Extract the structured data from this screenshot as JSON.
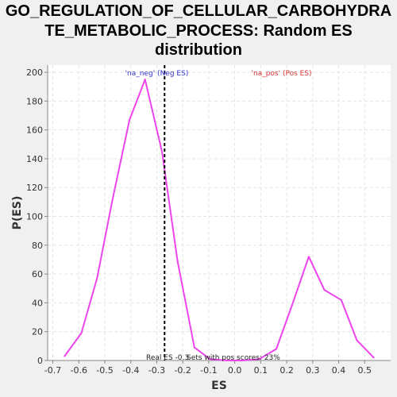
{
  "title_lines": [
    "GO_REGULATION_OF_CELLULAR_CARBOHYDRA",
    "TE_METABOLIC_PROCESS: Random ES",
    "distribution"
  ],
  "chart_data": {
    "type": "line",
    "title": "GO_REGULATION_OF_CELLULAR_CARBOHYDRATE_METABOLIC_PROCESS: Random ES distribution",
    "xlabel": "ES",
    "ylabel": "P(ES)",
    "xlim": [
      -0.72,
      0.6
    ],
    "ylim": [
      0,
      205
    ],
    "xticks": [
      -0.7,
      -0.6,
      -0.5,
      -0.4,
      -0.3,
      -0.2,
      -0.1,
      0.0,
      0.1,
      0.2,
      0.3,
      0.4,
      0.5
    ],
    "xtick_labels": [
      "-0.7",
      "-0.6",
      "-0.5",
      "-0.4",
      "-0.3",
      "-0.2",
      "-0.1",
      "0.0",
      "0.1",
      "0.2",
      "0.3",
      "0.4",
      "0.5"
    ],
    "yticks": [
      0,
      20,
      40,
      60,
      80,
      100,
      120,
      140,
      160,
      180,
      200
    ],
    "ytick_labels": [
      "0",
      "20",
      "40",
      "60",
      "80",
      "100",
      "120",
      "140",
      "160",
      "180",
      "200"
    ],
    "grid": true,
    "series": [
      {
        "color": "#ee44ee",
        "points": [
          [
            -0.655,
            3
          ],
          [
            -0.59,
            19
          ],
          [
            -0.53,
            57
          ],
          [
            -0.47,
            112
          ],
          [
            -0.405,
            167
          ],
          [
            -0.345,
            195
          ],
          [
            -0.28,
            145
          ],
          [
            -0.22,
            69
          ],
          [
            -0.155,
            9
          ],
          [
            -0.095,
            1
          ],
          [
            -0.03,
            0
          ],
          [
            0.03,
            0
          ],
          [
            0.095,
            1
          ],
          [
            0.16,
            8
          ],
          [
            0.22,
            38
          ],
          [
            0.285,
            72
          ],
          [
            0.345,
            49
          ],
          [
            0.41,
            42
          ],
          [
            0.47,
            14
          ],
          [
            0.535,
            2
          ]
        ]
      }
    ],
    "vline": {
      "x": -0.27,
      "style": "dashed",
      "color": "#000000"
    },
    "legend": [
      {
        "label": "'na_neg' (Neg ES)",
        "color": "#3333cc"
      },
      {
        "label": "'na_pos' (Pos ES)",
        "color": "#dd3333"
      }
    ],
    "annotations": [
      "Real ES -0.3",
      "Sets with pos scores: 23%"
    ]
  }
}
